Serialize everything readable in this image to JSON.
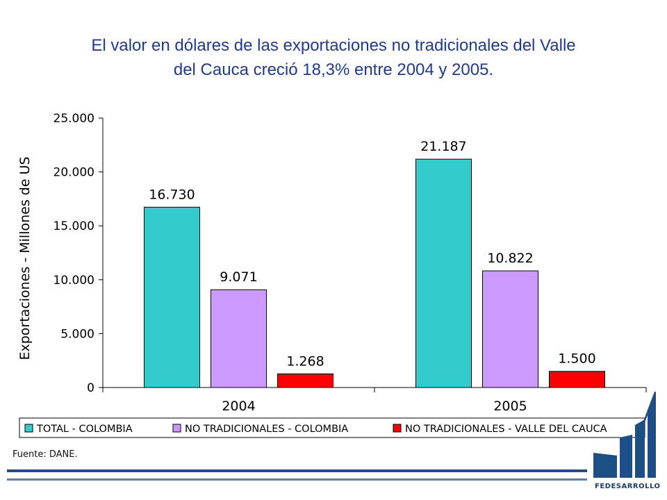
{
  "title_line1": "El valor en dólares de las exportaciones no tradicionales del Valle",
  "title_line2": "del Cauca creció 18,3% entre 2004 y 2005.",
  "source": "Fuente: DANE.",
  "logo_text": "FEDESARROLLO",
  "chart_data": {
    "type": "bar",
    "title": "El valor en dólares de las exportaciones no tradicionales del Valle del Cauca creció 18,3% entre 2004 y 2005.",
    "categories": [
      "2004",
      "2005"
    ],
    "ylabel": "Exportaciones - Millones de US",
    "xlabel": "",
    "ylim": [
      0,
      25000
    ],
    "yticks": [
      0,
      5000,
      10000,
      15000,
      20000,
      25000
    ],
    "ytick_labels": [
      "0",
      "5.000",
      "10.000",
      "15.000",
      "20.000",
      "25.000"
    ],
    "grid": false,
    "legend_position": "bottom",
    "series": [
      {
        "name": "TOTAL - COLOMBIA",
        "color": "#33cccc",
        "values": [
          16730,
          21187
        ],
        "labels": [
          "16.730",
          "21.187"
        ]
      },
      {
        "name": "NO TRADICIONALES - COLOMBIA",
        "color": "#cc99ff",
        "values": [
          9071,
          10822
        ],
        "labels": [
          "9.071",
          "10.822"
        ]
      },
      {
        "name": "NO TRADICIONALES - VALLE DEL CAUCA",
        "color": "#ff0000",
        "values": [
          1268,
          1500
        ],
        "labels": [
          "1.268",
          "1.500"
        ]
      }
    ]
  }
}
